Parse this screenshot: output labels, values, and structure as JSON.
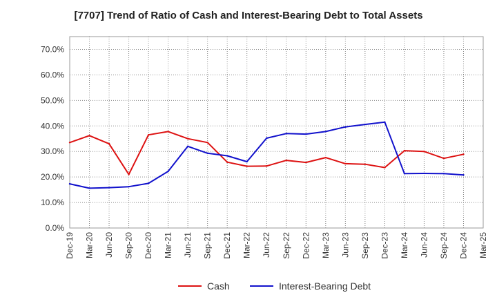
{
  "chart_data": {
    "type": "line",
    "title": "[7707]  Trend of Ratio of Cash and Interest-Bearing Debt to Total Assets",
    "x_labels": [
      "Dec-19",
      "Mar-20",
      "Jun-20",
      "Sep-20",
      "Dec-20",
      "Mar-21",
      "Jun-21",
      "Sep-21",
      "Dec-21",
      "Mar-22",
      "Jun-22",
      "Sep-22",
      "Dec-22",
      "Mar-23",
      "Jun-23",
      "Sep-23",
      "Dec-23",
      "Mar-24",
      "Jun-24",
      "Sep-24",
      "Dec-24",
      "Mar-25"
    ],
    "y_ticks": [
      "0.0%",
      "10.0%",
      "20.0%",
      "30.0%",
      "40.0%",
      "50.0%",
      "60.0%",
      "70.0%"
    ],
    "ylim": [
      0,
      75
    ],
    "grid": true,
    "legend_position": "bottom-center",
    "series": [
      {
        "name": "Cash",
        "color": "#dd1111",
        "values": [
          33.5,
          36.2,
          33.0,
          21.0,
          36.5,
          37.8,
          35.0,
          33.5,
          25.8,
          24.2,
          24.3,
          26.5,
          25.7,
          27.6,
          25.2,
          25.0,
          23.7,
          30.3,
          30.0,
          27.3,
          28.9,
          null
        ]
      },
      {
        "name": "Interest-Bearing Debt",
        "color": "#1111cc",
        "values": [
          17.3,
          15.6,
          15.8,
          16.2,
          17.5,
          22.2,
          32.0,
          29.3,
          28.3,
          26.0,
          35.2,
          37.0,
          36.8,
          37.8,
          39.6,
          40.6,
          41.5,
          21.3,
          21.4,
          21.3,
          20.8,
          null
        ]
      }
    ]
  }
}
